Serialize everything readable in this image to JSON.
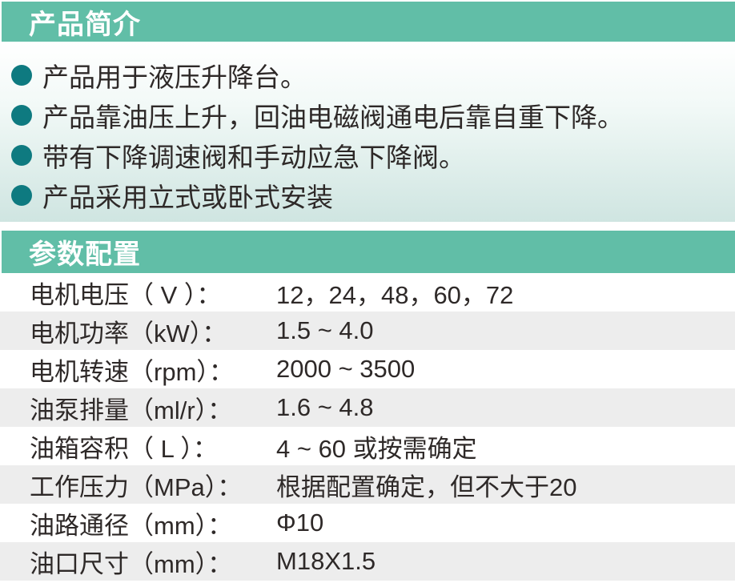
{
  "intro": {
    "title": "产品简介",
    "bullets": [
      "产品用于液压升降台。",
      "产品靠油压上升，回油电磁阀通电后靠自重下降。",
      "带有下降调速阀和手动应急下降阀。",
      "产品采用立式或卧式安装"
    ]
  },
  "specs": {
    "title": "参数配置",
    "rows": [
      {
        "label": "电机电压（ V ）：",
        "value": "12，24，48，60，72"
      },
      {
        "label": "电机功率（kW）：",
        "value": "1.5 ~ 4.0"
      },
      {
        "label": "电机转速（rpm）：",
        "value": "2000 ~ 3500"
      },
      {
        "label": "油泵排量（ml/r）：",
        "value": "1.6 ~ 4.8"
      },
      {
        "label": "油箱容积（ L ）：",
        "value": "4 ~ 60 或按需确定"
      },
      {
        "label": "工作压力（MPa）：",
        "value": "根据配置确定，但不大于20"
      },
      {
        "label": "油路通径（mm）：",
        "value": "Φ10"
      },
      {
        "label": "油口尺寸（mm）：",
        "value": "M18X1.5"
      }
    ]
  },
  "colors": {
    "header_bar": "#61bea7",
    "bullet_dot": "#0e7a80",
    "row_alt_gray": "#ededed",
    "intro_gradient_end": "#cfe5e1",
    "text": "#2e2928",
    "header_text": "#ffffff"
  },
  "icons": {
    "bullet": "filled-circle"
  }
}
